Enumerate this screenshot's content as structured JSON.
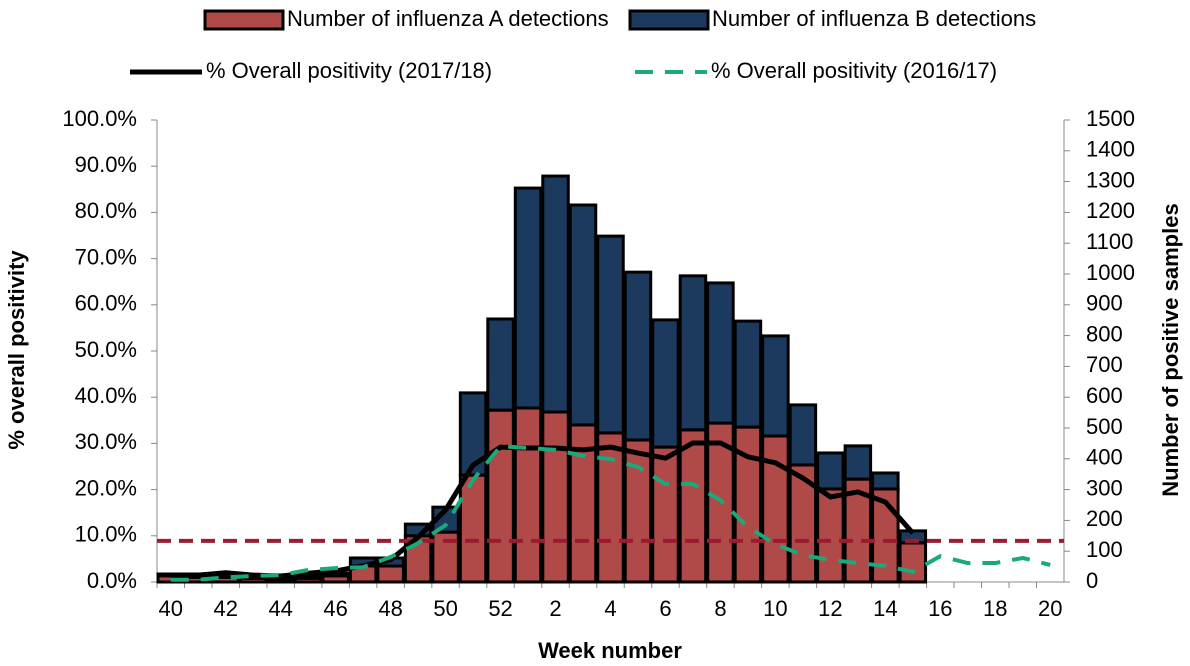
{
  "chart_data": {
    "type": "bar",
    "x_label": "Week number",
    "y_label": "% overall positivity",
    "y2_label": "Number of positive samples",
    "categories": [
      "40",
      null,
      "42",
      null,
      "44",
      null,
      "46",
      null,
      "48",
      null,
      "50",
      null,
      "52",
      null,
      "2",
      null,
      "4",
      null,
      "6",
      null,
      "8",
      null,
      "10",
      null,
      "12",
      null,
      "14",
      null,
      "16",
      null,
      "18",
      null,
      "20"
    ],
    "ylim": [
      0,
      100
    ],
    "yticks": [
      {
        "value": 0,
        "label": "0.0%"
      },
      {
        "value": 10,
        "label": "10.0%"
      },
      {
        "value": 20,
        "label": "20.0%"
      },
      {
        "value": 30,
        "label": "30.0%"
      },
      {
        "value": 40,
        "label": "40.0%"
      },
      {
        "value": 50,
        "label": "50.0%"
      },
      {
        "value": 60,
        "label": "60.0%"
      },
      {
        "value": 70,
        "label": "70.0%"
      },
      {
        "value": 80,
        "label": "80.0%"
      },
      {
        "value": 90,
        "label": "90.0%"
      },
      {
        "value": 100,
        "label": "100.0%"
      }
    ],
    "y2lim": [
      0,
      1500
    ],
    "y2ticks": [
      0,
      100,
      200,
      300,
      400,
      500,
      600,
      700,
      800,
      900,
      1000,
      1100,
      1200,
      1300,
      1400,
      1500
    ],
    "series": [
      {
        "name": "Number of influenza A detections",
        "type": "bar",
        "axis": "y2",
        "color": "#b04a48",
        "values": [
          20,
          15,
          15,
          12,
          10,
          12,
          20,
          52,
          52,
          150,
          162,
          347,
          558,
          565,
          552,
          510,
          484,
          461,
          438,
          494,
          516,
          503,
          474,
          380,
          302,
          334,
          302,
          127,
          null,
          null,
          null,
          null,
          null
        ]
      },
      {
        "name": "Number of influenza B detections",
        "type": "bar",
        "axis": "y2",
        "color": "#1b3a5e",
        "values": [
          6,
          11,
          10,
          8,
          6,
          8,
          9,
          26,
          26,
          38,
          81,
          267,
          296,
          714,
          766,
          714,
          639,
          545,
          413,
          500,
          455,
          344,
          325,
          195,
          117,
          108,
          52,
          39,
          null,
          null,
          null,
          null,
          null
        ]
      },
      {
        "name": "% Overall positivity (2017/18)",
        "type": "line",
        "axis": "y",
        "color": "#000000",
        "dashed": false,
        "values": [
          1.1,
          1.5,
          2.0,
          1.5,
          1.3,
          1.9,
          2.4,
          3.5,
          4.8,
          9.7,
          15.6,
          25.3,
          29.2,
          29.0,
          29.0,
          28.6,
          29.2,
          27.9,
          26.8,
          30.1,
          30.1,
          27.1,
          25.8,
          22.5,
          18.4,
          19.5,
          17.3,
          10.6,
          null,
          null,
          null,
          null,
          null
        ]
      },
      {
        "name": "% Overall positivity (2016/17)",
        "type": "line",
        "axis": "y",
        "color": "#19a97a",
        "dashed": true,
        "values": [
          0.5,
          0.5,
          1.0,
          1.3,
          1.5,
          2.6,
          3.0,
          3.2,
          5.4,
          8.4,
          12.3,
          22.1,
          29.4,
          29.0,
          28.6,
          27.3,
          26.6,
          24.9,
          21.2,
          21.2,
          17.7,
          11.9,
          8.2,
          5.8,
          4.8,
          4.1,
          3.5,
          2.2,
          5.6,
          4.1,
          4.1,
          5.2,
          3.7
        ]
      }
    ],
    "reference_line": {
      "value": 8.9,
      "color": "#9b1b30"
    }
  }
}
